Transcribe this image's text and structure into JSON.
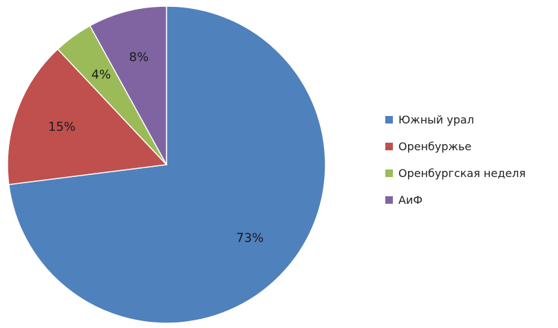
{
  "chart_data": {
    "type": "pie",
    "title": "",
    "start_angle_deg": 0,
    "direction": "clockwise",
    "legend_position": "right",
    "slices": [
      {
        "name": "Южный урал",
        "value": 73,
        "label": "73%",
        "color": "#4F81BD"
      },
      {
        "name": "Оренбуржье",
        "value": 15,
        "label": "15%",
        "color": "#C0504D"
      },
      {
        "name": "Оренбургская неделя",
        "value": 4,
        "label": "4%",
        "color": "#9BBB59"
      },
      {
        "name": "АиФ",
        "value": 8,
        "label": "8%",
        "color": "#8064A2"
      }
    ]
  }
}
